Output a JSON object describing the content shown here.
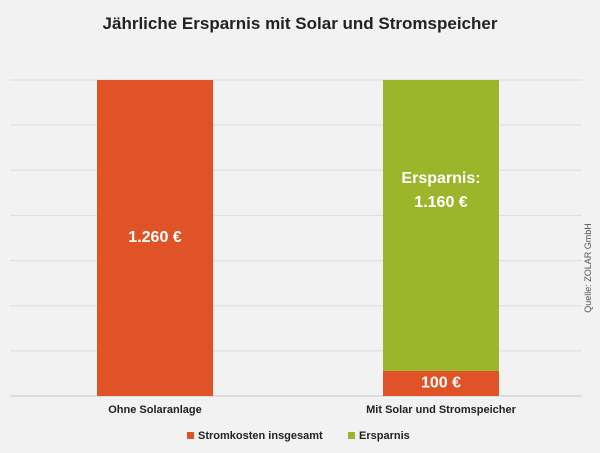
{
  "chart_data": {
    "type": "bar",
    "stacked": true,
    "title": "Jährliche Ersparnis mit Solar und Stromspeicher",
    "categories": [
      "Ohne Solaranlage",
      "Mit Solar und Stromspeicher"
    ],
    "series": [
      {
        "name": "Stromkosten insgesamt",
        "color": "#e05327",
        "values": [
          1260,
          100
        ]
      },
      {
        "name": "Ersparnis",
        "color": "#9db52b",
        "values": [
          0,
          1160
        ]
      }
    ],
    "data_labels": [
      {
        "category": "Ohne Solaranlage",
        "series": "Stromkosten insgesamt",
        "text": "1.260 €"
      },
      {
        "category": "Mit Solar und Stromspeicher",
        "series": "Stromkosten insgesamt",
        "text": "100 €"
      },
      {
        "category": "Mit Solar und Stromspeicher",
        "series": "Ersparnis",
        "text_lines": [
          "Ersparnis:",
          "1.160 €"
        ]
      }
    ],
    "ylim": [
      0,
      1260
    ],
    "grid": true,
    "legend_position": "bottom",
    "source": "Quelle: ZOLAR GmbH"
  }
}
